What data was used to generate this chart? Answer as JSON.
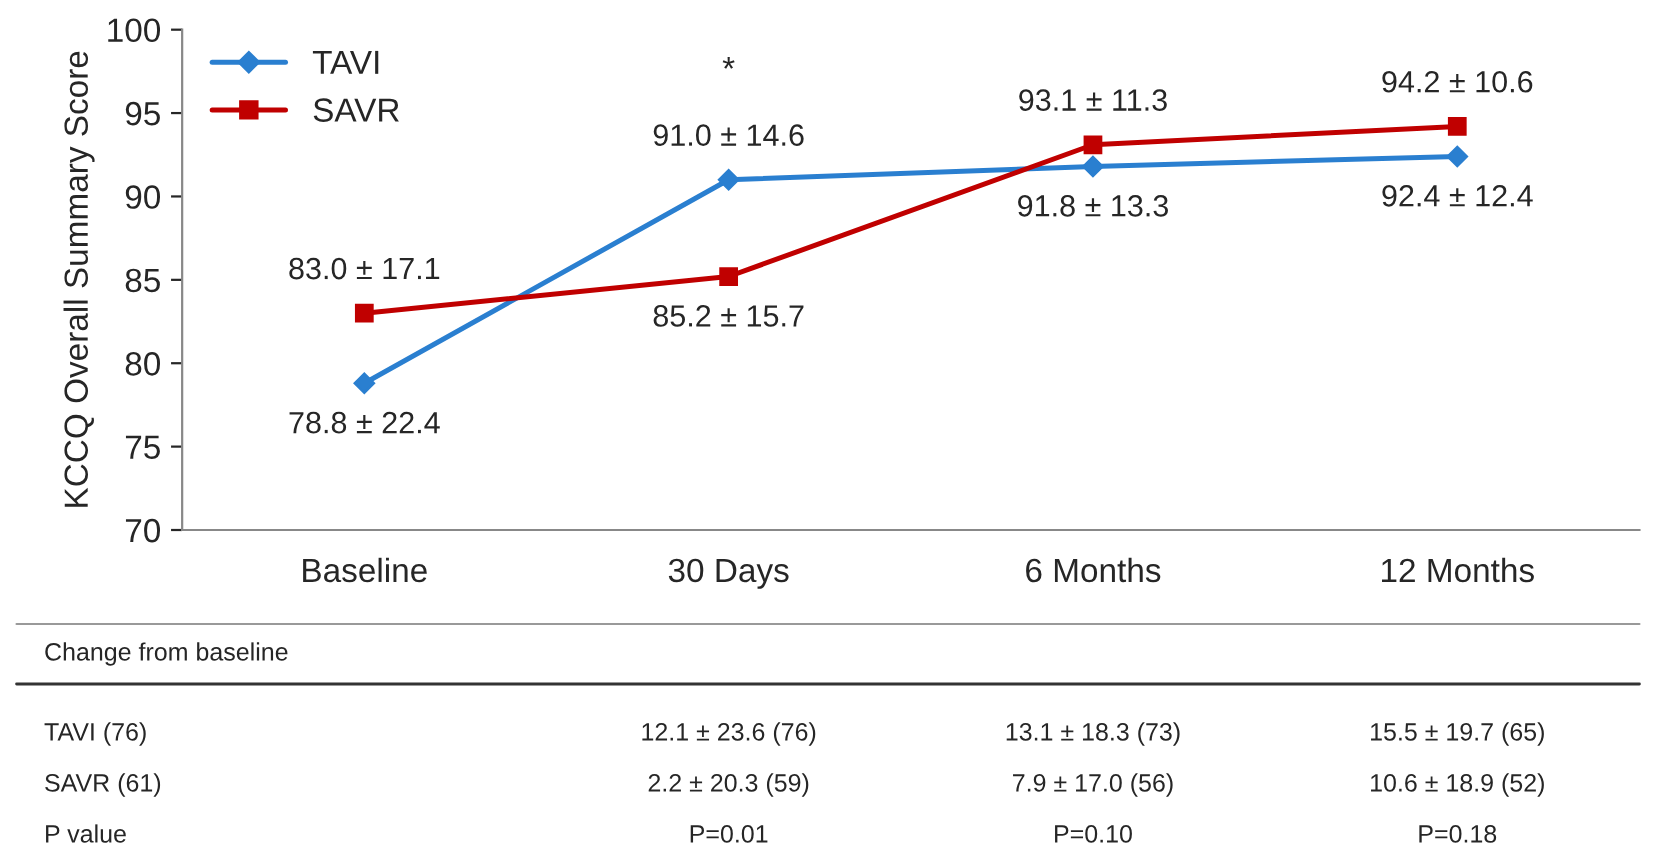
{
  "chart_data": {
    "type": "line",
    "ylabel": "KCCQ Overall Summary Score",
    "categories": [
      "Baseline",
      "30 Days",
      "6 Months",
      "12 Months"
    ],
    "series": [
      {
        "name": "TAVI",
        "color": "#2a7fd0",
        "marker": "diamond",
        "values": [
          78.8,
          91.0,
          91.8,
          92.4
        ],
        "value_labels": [
          "78.8 ± 22.4",
          "91.0 ± 14.6",
          "91.8 ± 13.3",
          "92.4 ± 12.4"
        ]
      },
      {
        "name": "SAVR",
        "color": "#c00000",
        "marker": "square",
        "values": [
          83.0,
          85.2,
          93.1,
          94.2
        ],
        "value_labels": [
          "83.0 ± 17.1",
          "85.2 ± 15.7",
          "93.1 ± 11.3",
          "94.2 ± 10.6"
        ]
      }
    ],
    "ylim": [
      70,
      100
    ],
    "yticks": [
      70,
      75,
      80,
      85,
      90,
      95,
      100
    ],
    "grid": false,
    "legend": "top left",
    "line_style": "solid",
    "annotations": [
      "*",
      "Change from baseline",
      "TAVI (76)",
      "12.1 ± 23.6 (76)",
      "13.1 ± 18.3 (73)",
      "15.5 ± 19.7 (65)",
      "SAVR (61)",
      "2.2 ± 20.3 (59)",
      "7.9 ± 17.0 (56)",
      "10.6 ± 18.9 (52)",
      "P value",
      "P=0.01",
      "P=0.10",
      "P=0.18"
    ]
  }
}
